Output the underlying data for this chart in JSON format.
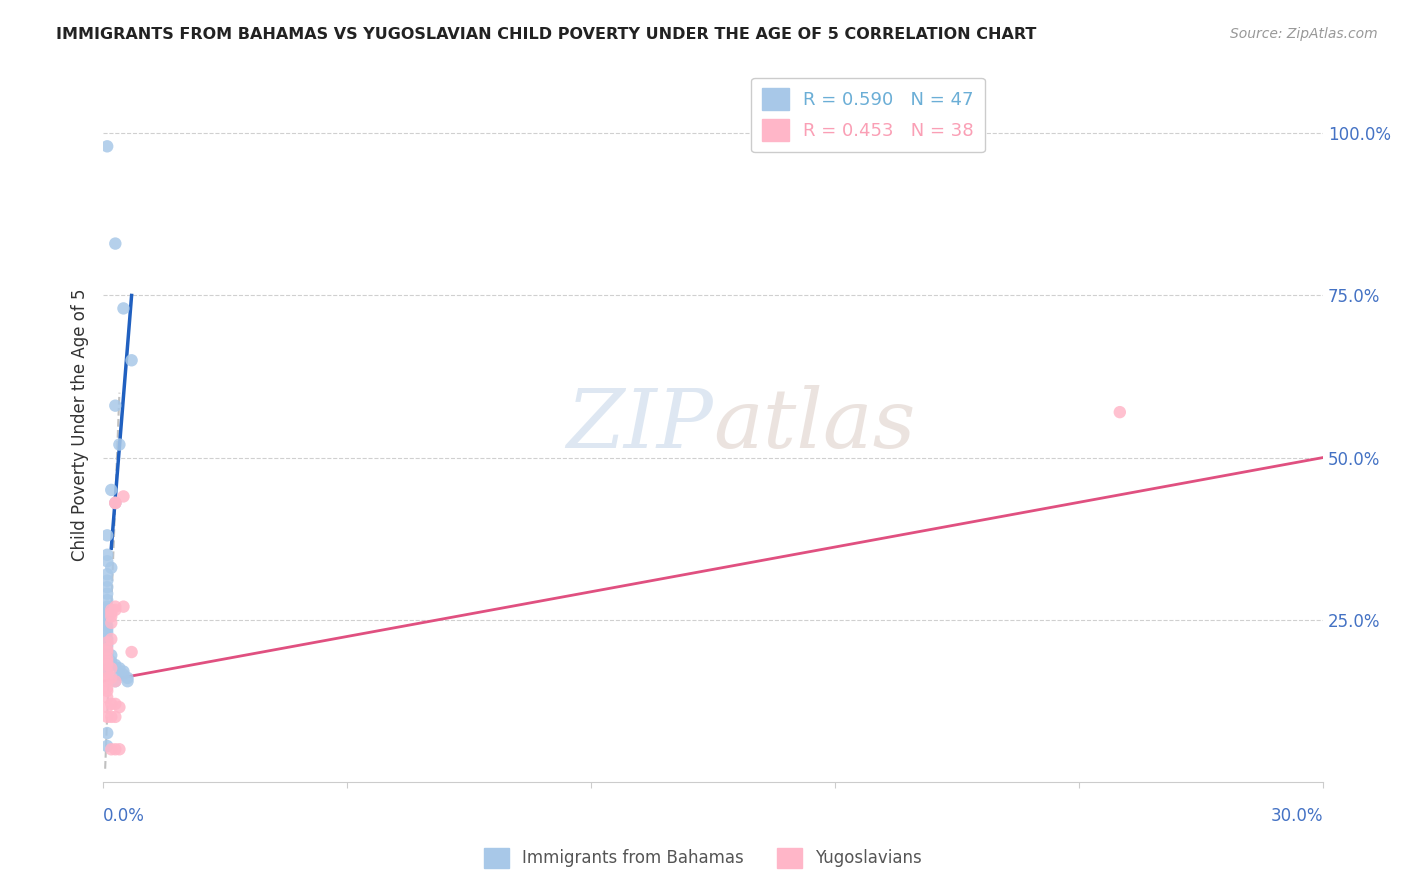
{
  "title": "IMMIGRANTS FROM BAHAMAS VS YUGOSLAVIAN CHILD POVERTY UNDER THE AGE OF 5 CORRELATION CHART",
  "source": "Source: ZipAtlas.com",
  "ylabel": "Child Poverty Under the Age of 5",
  "ylabel_right_ticks": [
    "100.0%",
    "75.0%",
    "50.0%",
    "25.0%"
  ],
  "ylabel_right_values": [
    1.0,
    0.75,
    0.5,
    0.25
  ],
  "legend_entries": [
    {
      "label": "R = 0.590   N = 47",
      "color": "#6baed6"
    },
    {
      "label": "R = 0.453   N = 38",
      "color": "#fa9fb5"
    }
  ],
  "legend_bottom": [
    "Immigrants from Bahamas",
    "Yugoslavians"
  ],
  "watermark_zip": "ZIP",
  "watermark_atlas": "atlas",
  "axis_color": "#4472c4",
  "grid_color": "#d0d0d0",
  "background": "#ffffff",
  "blue_scatter": [
    [
      0.001,
      0.98
    ],
    [
      0.003,
      0.83
    ],
    [
      0.005,
      0.73
    ],
    [
      0.007,
      0.65
    ],
    [
      0.003,
      0.58
    ],
    [
      0.004,
      0.52
    ],
    [
      0.002,
      0.45
    ],
    [
      0.003,
      0.43
    ],
    [
      0.001,
      0.38
    ],
    [
      0.001,
      0.35
    ],
    [
      0.001,
      0.34
    ],
    [
      0.002,
      0.33
    ],
    [
      0.001,
      0.32
    ],
    [
      0.001,
      0.31
    ],
    [
      0.001,
      0.3
    ],
    [
      0.001,
      0.29
    ],
    [
      0.001,
      0.28
    ],
    [
      0.001,
      0.27
    ],
    [
      0.001,
      0.265
    ],
    [
      0.001,
      0.26
    ],
    [
      0.001,
      0.255
    ],
    [
      0.001,
      0.25
    ],
    [
      0.001,
      0.24
    ],
    [
      0.001,
      0.235
    ],
    [
      0.001,
      0.23
    ],
    [
      0.001,
      0.22
    ],
    [
      0.001,
      0.215
    ],
    [
      0.001,
      0.21
    ],
    [
      0.001,
      0.2
    ],
    [
      0.001,
      0.195
    ],
    [
      0.001,
      0.19
    ],
    [
      0.001,
      0.185
    ],
    [
      0.001,
      0.18
    ],
    [
      0.001,
      0.17
    ],
    [
      0.002,
      0.195
    ],
    [
      0.002,
      0.185
    ],
    [
      0.002,
      0.18
    ],
    [
      0.003,
      0.18
    ],
    [
      0.004,
      0.175
    ],
    [
      0.005,
      0.17
    ],
    [
      0.004,
      0.165
    ],
    [
      0.005,
      0.165
    ],
    [
      0.006,
      0.16
    ],
    [
      0.003,
      0.155
    ],
    [
      0.001,
      0.055
    ],
    [
      0.001,
      0.075
    ],
    [
      0.006,
      0.155
    ]
  ],
  "pink_scatter": [
    [
      0.001,
      0.215
    ],
    [
      0.001,
      0.205
    ],
    [
      0.001,
      0.2
    ],
    [
      0.001,
      0.19
    ],
    [
      0.001,
      0.185
    ],
    [
      0.001,
      0.18
    ],
    [
      0.001,
      0.17
    ],
    [
      0.001,
      0.16
    ],
    [
      0.001,
      0.155
    ],
    [
      0.001,
      0.145
    ],
    [
      0.001,
      0.14
    ],
    [
      0.001,
      0.13
    ],
    [
      0.001,
      0.115
    ],
    [
      0.001,
      0.1
    ],
    [
      0.002,
      0.265
    ],
    [
      0.002,
      0.26
    ],
    [
      0.002,
      0.255
    ],
    [
      0.002,
      0.245
    ],
    [
      0.002,
      0.22
    ],
    [
      0.002,
      0.175
    ],
    [
      0.002,
      0.16
    ],
    [
      0.002,
      0.12
    ],
    [
      0.002,
      0.1
    ],
    [
      0.002,
      0.05
    ],
    [
      0.003,
      0.43
    ],
    [
      0.003,
      0.43
    ],
    [
      0.003,
      0.27
    ],
    [
      0.003,
      0.265
    ],
    [
      0.003,
      0.155
    ],
    [
      0.003,
      0.12
    ],
    [
      0.003,
      0.1
    ],
    [
      0.003,
      0.05
    ],
    [
      0.004,
      0.115
    ],
    [
      0.004,
      0.05
    ],
    [
      0.005,
      0.44
    ],
    [
      0.005,
      0.27
    ],
    [
      0.007,
      0.2
    ],
    [
      0.25,
      0.57
    ]
  ],
  "blue_line": [
    [
      0.002,
      0.36
    ],
    [
      0.007,
      0.75
    ]
  ],
  "blue_line_dashed": [
    [
      0.0005,
      0.02
    ],
    [
      0.004,
      0.6
    ]
  ],
  "pink_line": [
    [
      0.0,
      0.155
    ],
    [
      0.3,
      0.5
    ]
  ],
  "blue_scatter_color": "#a8c8e8",
  "pink_scatter_color": "#ffb6c8",
  "blue_line_color": "#2060c0",
  "pink_line_color": "#e05080",
  "blue_dashed_color": "#c0c0c0",
  "xtick_vals": [
    0.0,
    0.06,
    0.12,
    0.18,
    0.24,
    0.3
  ],
  "xmin": 0.0,
  "xmax": 0.3,
  "ymin": 0.0,
  "ymax": 1.1
}
